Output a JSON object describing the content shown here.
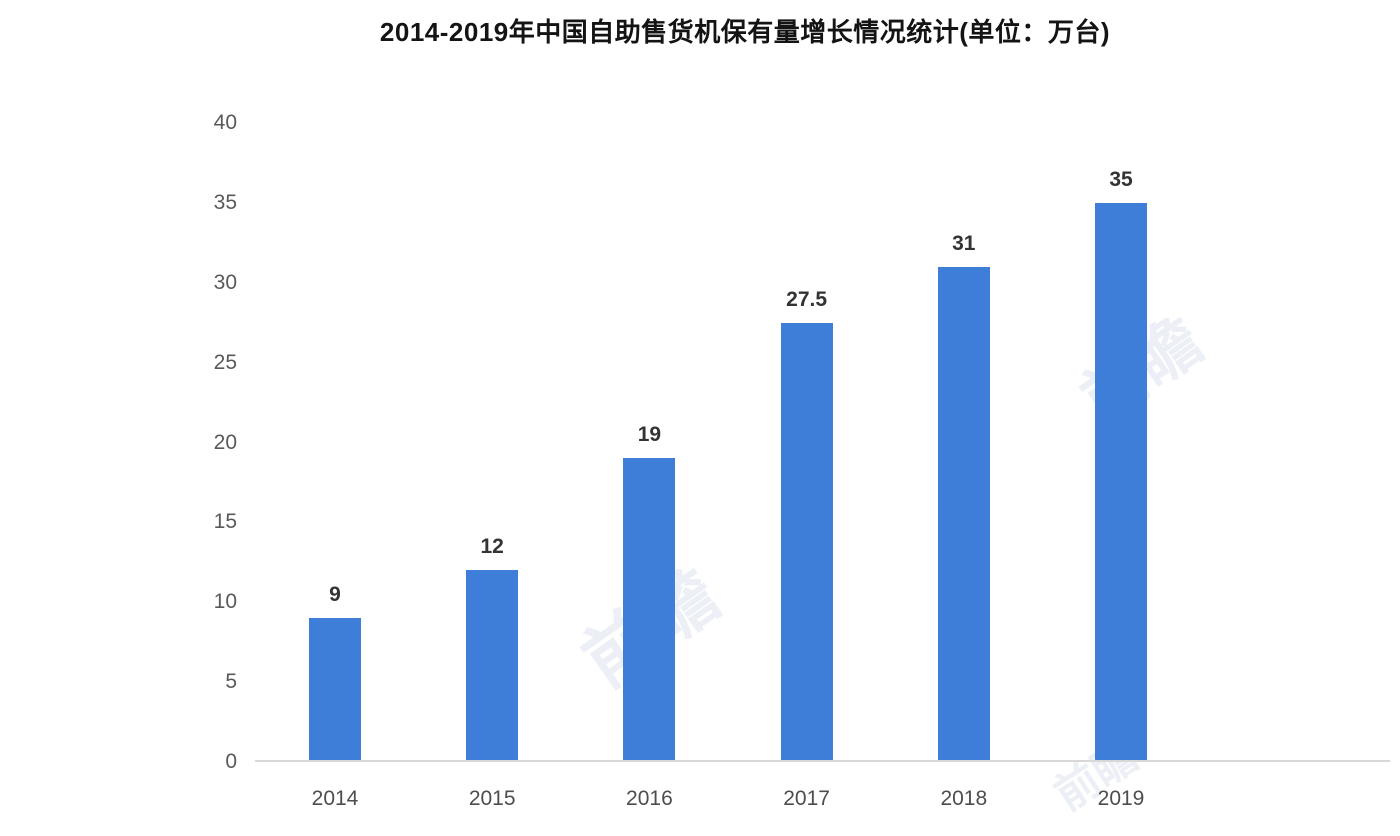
{
  "chart_data": {
    "type": "bar",
    "title": "2014-2019年中国自助售货机保有量增长情况统计(单位：万台)",
    "categories": [
      "2014",
      "2015",
      "2016",
      "2017",
      "2018",
      "2019"
    ],
    "values": [
      9,
      12,
      19,
      27.5,
      31,
      35
    ],
    "value_labels": [
      "9",
      "12",
      "19",
      "27.5",
      "31",
      "35"
    ],
    "yticks": [
      0,
      5,
      10,
      15,
      20,
      25,
      30,
      35,
      40
    ],
    "ylim": [
      0,
      40
    ],
    "xlabel": "",
    "ylabel": "",
    "grid": false,
    "legend": false,
    "bar_color": "#3e7ed8",
    "axis_line_color": "#d8d8d8",
    "tick_label_color": "#595959",
    "x_label_color": "#4d4d4d",
    "value_label_color": "#333333",
    "title_color": "#141414"
  },
  "watermark": {
    "text": "前瞻",
    "color": "rgba(135, 160, 200, 0.16)"
  }
}
